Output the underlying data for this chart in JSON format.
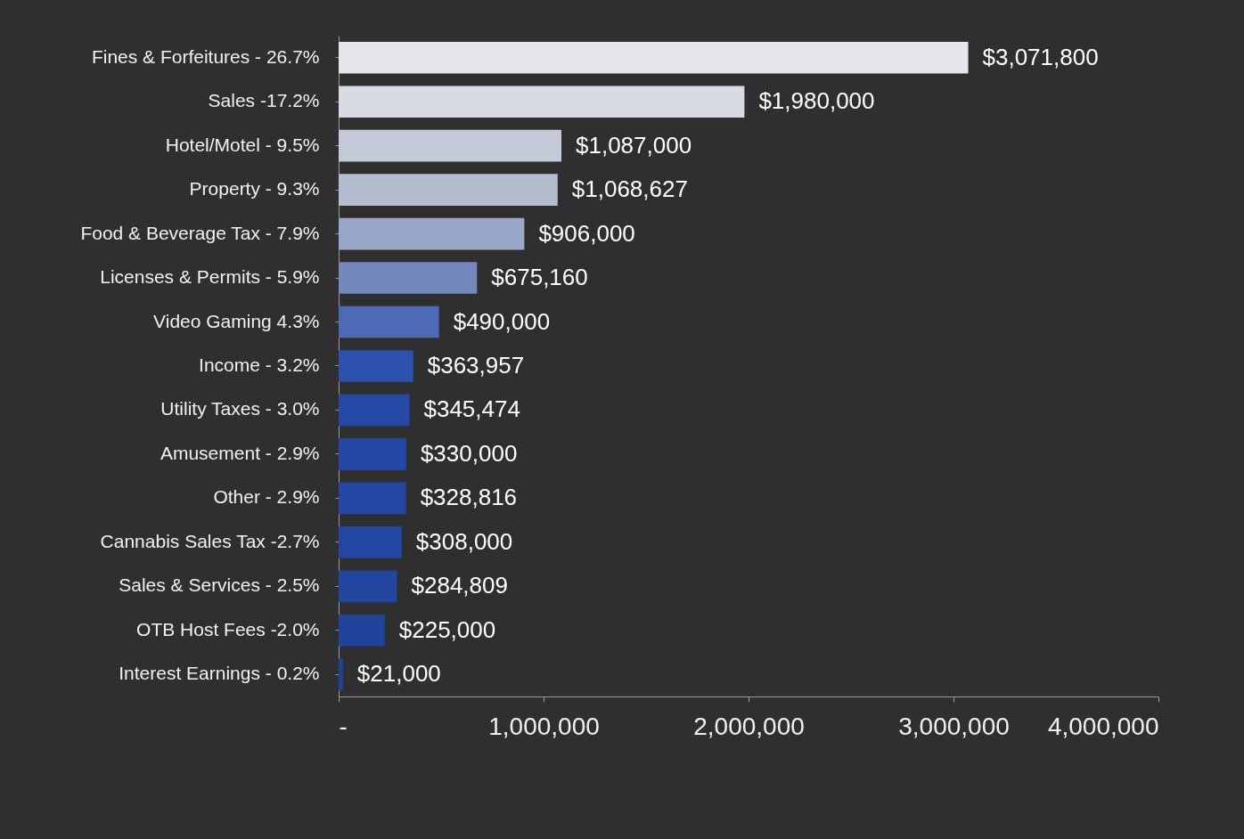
{
  "chart_data": {
    "type": "bar",
    "orientation": "horizontal",
    "categories": [
      "Fines & Forfeitures - 26.7%",
      "Sales -17.2%",
      "Hotel/Motel - 9.5%",
      "Property - 9.3%",
      "Food & Beverage Tax - 7.9%",
      "Licenses & Permits - 5.9%",
      "Video Gaming 4.3%",
      "Income - 3.2%",
      "Utility Taxes - 3.0%",
      "Amusement - 2.9%",
      "Other - 2.9%",
      "Cannabis Sales Tax -2.7%",
      "Sales & Services - 2.5%",
      "OTB Host Fees -2.0%",
      "Interest Earnings - 0.2%"
    ],
    "values": [
      3071800,
      1980000,
      1087000,
      1068627,
      906000,
      675160,
      490000,
      363957,
      345474,
      330000,
      328816,
      308000,
      284809,
      225000,
      21000
    ],
    "value_labels": [
      "$3,071,800",
      "$1,980,000",
      "$1,087,000",
      "$1,068,627",
      "$906,000",
      "$675,160",
      "$490,000",
      "$363,957",
      "$345,474",
      "$330,000",
      "$328,816",
      "$308,000",
      "$284,809",
      "$225,000",
      "$21,000"
    ],
    "colors": [
      "#e4e6ea",
      "#d6dae2",
      "#c4cad8",
      "#b4bdd0",
      "#99a8c8",
      "#7488bd",
      "#4e6ab5",
      "#2d52ad",
      "#2549a6",
      "#2448a4",
      "#2347a3",
      "#2246a2",
      "#2245a0",
      "#20439c",
      "#1f4199"
    ],
    "xlim": [
      0,
      4000000
    ],
    "xticks": [
      {
        "value": 0,
        "label": "-"
      },
      {
        "value": 1000000,
        "label": "1,000,000"
      },
      {
        "value": 2000000,
        "label": "2,000,000"
      },
      {
        "value": 3000000,
        "label": "3,000,000"
      },
      {
        "value": 4000000,
        "label": "4,000,000"
      }
    ]
  }
}
